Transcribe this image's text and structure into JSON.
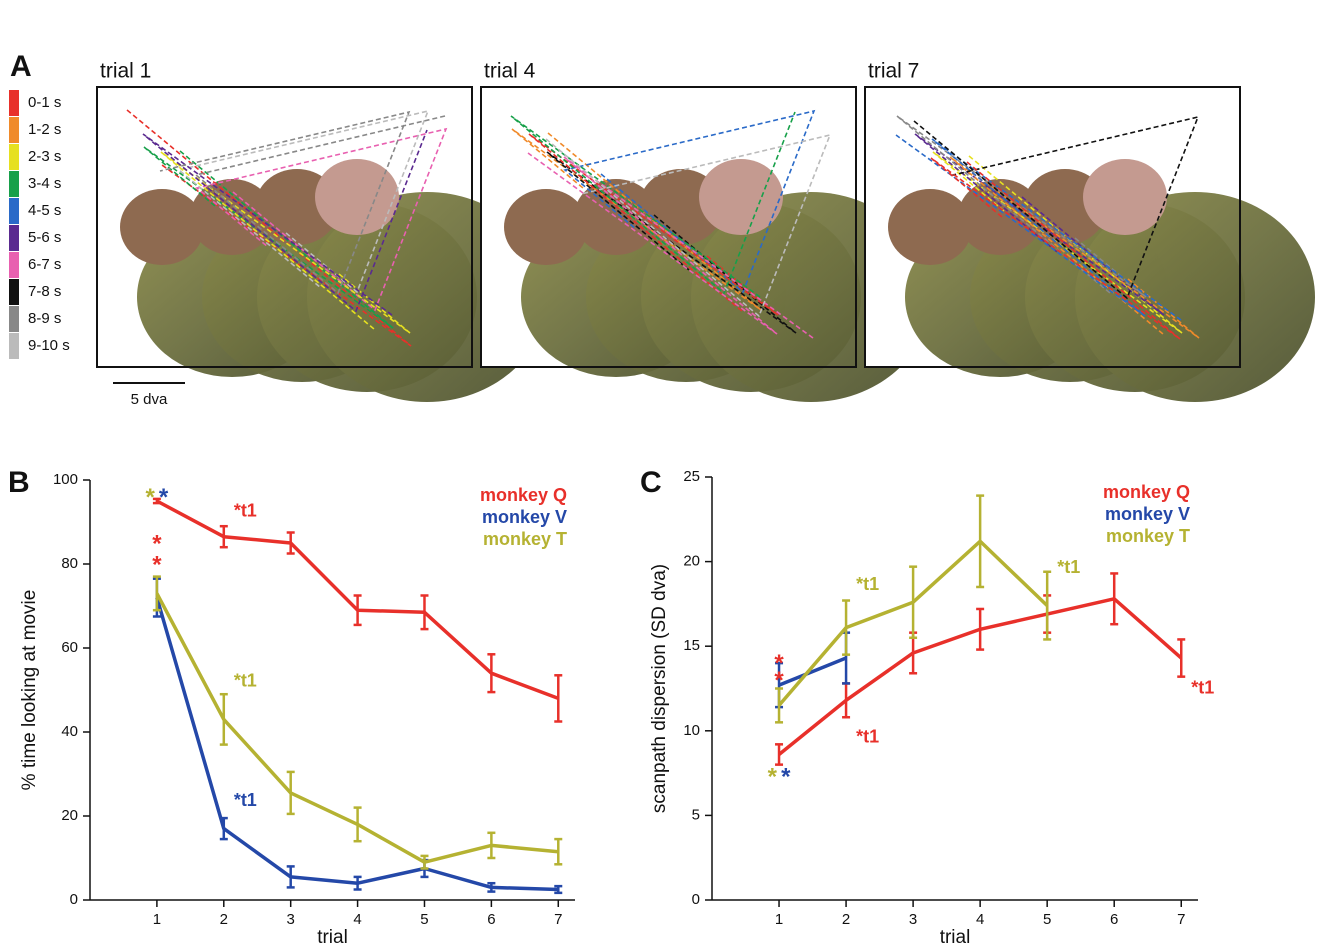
{
  "panel_a": {
    "label": "A",
    "trials": [
      "trial 1",
      "trial 4",
      "trial 7"
    ],
    "legend": [
      {
        "label": "0-1 s",
        "color": "#e8302a"
      },
      {
        "label": "1-2 s",
        "color": "#f08a2a"
      },
      {
        "label": "2-3 s",
        "color": "#e6e020"
      },
      {
        "label": "3-4 s",
        "color": "#17a04a"
      },
      {
        "label": "4-5 s",
        "color": "#2a6ac8"
      },
      {
        "label": "5-6 s",
        "color": "#5a2a90"
      },
      {
        "label": "6-7 s",
        "color": "#e860b0"
      },
      {
        "label": "7-8 s",
        "color": "#111111"
      },
      {
        "label": "8-9 s",
        "color": "#888888"
      },
      {
        "label": "9-10 s",
        "color": "#bbbbbb"
      }
    ],
    "scale_bar": "5 dva"
  },
  "chart_data": [
    {
      "type": "line",
      "panel_label": "B",
      "x_label": "trial",
      "y_label": "% time looking at movie",
      "x": [
        1,
        2,
        3,
        4,
        5,
        6,
        7
      ],
      "xlim": [
        0,
        7.25
      ],
      "xticks": [
        1,
        2,
        3,
        4,
        5,
        6,
        7
      ],
      "ylim": [
        0,
        100
      ],
      "yticks": [
        0,
        20,
        40,
        60,
        80,
        100
      ],
      "grid": false,
      "legend": "upper right",
      "series": [
        {
          "name": "monkey Q",
          "color": "#e8302a",
          "values": [
            95,
            86.5,
            85,
            69,
            68.5,
            54,
            48
          ],
          "errors": [
            0.5,
            2.5,
            2.5,
            3.5,
            4,
            4.5,
            5.5
          ]
        },
        {
          "name": "monkey V",
          "color": "#2448a8",
          "values": [
            72,
            17,
            5.5,
            4,
            7.5,
            3,
            2.5
          ],
          "errors": [
            4.5,
            2.5,
            2.5,
            1.5,
            2,
            1,
            0.8
          ]
        },
        {
          "name": "monkey T",
          "color": "#b5b232",
          "values": [
            73,
            43,
            25.5,
            18,
            9,
            13,
            11.5
          ],
          "errors": [
            4,
            6,
            5,
            4,
            1.5,
            3,
            3
          ]
        }
      ],
      "annotations": [
        {
          "text": "*",
          "color": "#b5b232",
          "x": 0.9,
          "y": 95.5
        },
        {
          "text": "*",
          "color": "#2448a8",
          "x": 1.1,
          "y": 95.5
        },
        {
          "text": "*",
          "color": "#e8302a",
          "x": 1,
          "y": 84.5
        },
        {
          "text": "*",
          "color": "#e8302a",
          "x": 1,
          "y": 79.5
        },
        {
          "text": "*t1",
          "color": "#e8302a",
          "x": 2.15,
          "y": 92.5
        },
        {
          "text": "*t1",
          "color": "#b5b232",
          "x": 2.15,
          "y": 52
        },
        {
          "text": "*t1",
          "color": "#2448a8",
          "x": 2.15,
          "y": 23.5
        }
      ]
    },
    {
      "type": "line",
      "panel_label": "C",
      "x_label": "trial",
      "y_label": "scanpath dispersion (SD dva)",
      "x": [
        1,
        2,
        3,
        4,
        5,
        6,
        7
      ],
      "xlim": [
        0,
        7.25
      ],
      "xticks": [
        1,
        2,
        3,
        4,
        5,
        6,
        7
      ],
      "ylim": [
        0,
        25
      ],
      "yticks": [
        0,
        5,
        10,
        15,
        20,
        25
      ],
      "grid": false,
      "legend": "upper right",
      "series": [
        {
          "name": "monkey Q",
          "color": "#e8302a",
          "values": [
            8.6,
            11.8,
            14.6,
            16,
            16.9,
            17.8,
            14.3
          ],
          "errors": [
            0.6,
            1,
            1.2,
            1.2,
            1.1,
            1.5,
            1.1
          ]
        },
        {
          "name": "monkey V",
          "color": "#2448a8",
          "values": [
            12.7,
            14.3,
            null,
            null,
            null,
            null,
            null
          ],
          "errors": [
            1.3,
            1.5,
            null,
            null,
            null,
            null,
            null
          ]
        },
        {
          "name": "monkey T",
          "color": "#b5b232",
          "values": [
            11.5,
            16.1,
            17.6,
            21.2,
            17.4,
            null,
            null
          ],
          "errors": [
            1,
            1.6,
            2.1,
            2.7,
            2,
            null,
            null
          ]
        }
      ],
      "annotations": [
        {
          "text": "*",
          "color": "#e8302a",
          "x": 1,
          "y": 13.9
        },
        {
          "text": "*",
          "color": "#e8302a",
          "x": 1,
          "y": 12.9
        },
        {
          "text": "*t1",
          "color": "#b5b232",
          "x": 2.15,
          "y": 18.6
        },
        {
          "text": "*t1",
          "color": "#b5b232",
          "x": 5.15,
          "y": 19.6
        },
        {
          "text": "*t1",
          "color": "#e8302a",
          "x": 2.15,
          "y": 9.6
        },
        {
          "text": "*t1",
          "color": "#e8302a",
          "x": 7.15,
          "y": 12.5
        },
        {
          "text": "*",
          "color": "#b5b232",
          "x": 0.9,
          "y": 7.2
        },
        {
          "text": "*",
          "color": "#2448a8",
          "x": 1.1,
          "y": 7.2
        }
      ]
    }
  ]
}
